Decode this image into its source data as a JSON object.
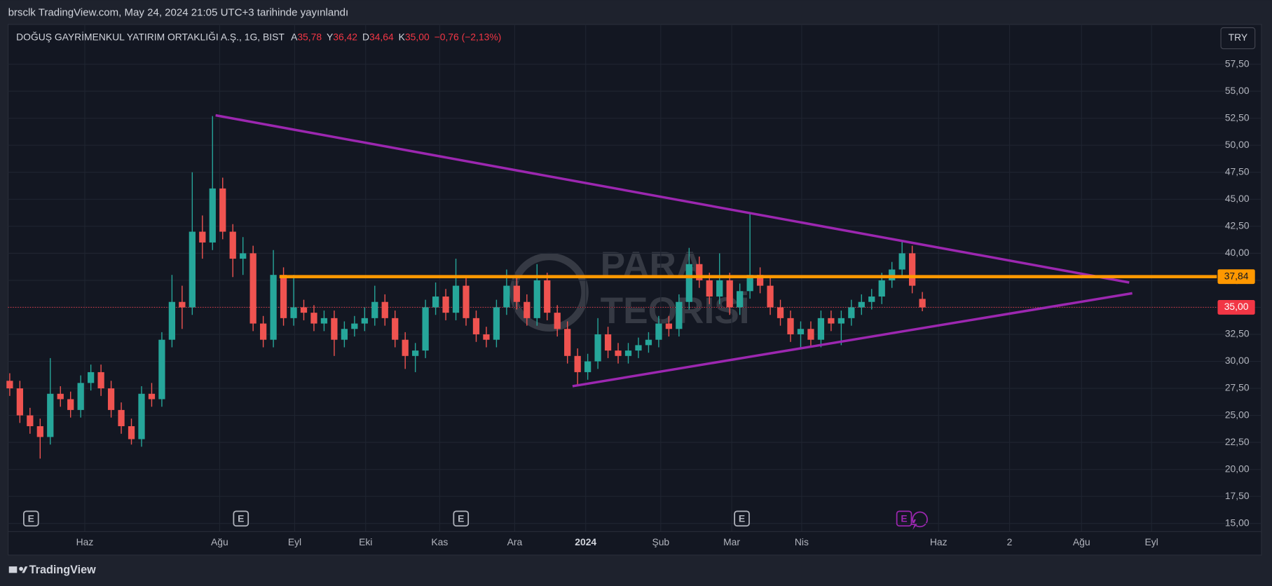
{
  "published": "brsclk TradingView.com, May 24, 2024 21:05 UTC+3 tarihinde yayınlandı",
  "footer": "TradingView",
  "chart_data": {
    "type": "candlestick",
    "title": "DOĞUŞ GAYRİMENKUL YATIRIM ORTAKLIĞI A.Ş., 1G, BIST",
    "ohlc_header": [
      {
        "label": "A",
        "value": "35,78"
      },
      {
        "label": "Y",
        "value": "36,42"
      },
      {
        "label": "D",
        "value": "34,64"
      },
      {
        "label": "K",
        "value": "35,00"
      }
    ],
    "change": "−0,76 (−2,13%)",
    "currency": "TRY",
    "watermark": [
      "PARA",
      "TEORİSİ"
    ],
    "up_color": "#26a69a",
    "down_color": "#ef5350",
    "candles": [
      [
        28.2,
        28.9,
        26.8,
        27.5
      ],
      [
        27.5,
        28.2,
        24.3,
        25
      ],
      [
        25,
        25.7,
        23.3,
        24
      ],
      [
        24,
        24.7,
        21,
        23
      ],
      [
        23,
        30.3,
        22.3,
        27
      ],
      [
        27,
        27.7,
        25.8,
        26.5
      ],
      [
        26.5,
        27.2,
        24.8,
        25.5
      ],
      [
        25.5,
        28.7,
        24.8,
        28
      ],
      [
        28,
        29.7,
        27.3,
        29
      ],
      [
        29,
        29.7,
        26.8,
        27.5
      ],
      [
        27.5,
        28.2,
        24.8,
        25.5
      ],
      [
        25.5,
        26.2,
        23.3,
        24
      ],
      [
        24,
        24.7,
        22.3,
        22.8
      ],
      [
        22.8,
        27.7,
        22.1,
        27
      ],
      [
        27,
        28,
        25.8,
        26.5
      ],
      [
        26.5,
        32.7,
        25.8,
        32
      ],
      [
        32,
        38,
        31.3,
        35.5
      ],
      [
        35.5,
        37,
        33,
        35
      ],
      [
        35,
        47.5,
        34.3,
        42
      ],
      [
        42,
        43.5,
        39.5,
        41
      ],
      [
        41,
        52.7,
        40.3,
        46
      ],
      [
        46,
        47,
        41.3,
        42
      ],
      [
        42,
        42.7,
        37.8,
        39.5
      ],
      [
        39.5,
        41.5,
        38,
        40
      ],
      [
        40,
        40.7,
        32.8,
        33.5
      ],
      [
        33.5,
        34.2,
        31.3,
        32
      ],
      [
        32,
        40.3,
        31.3,
        38
      ],
      [
        38,
        38.7,
        33.3,
        34
      ],
      [
        34,
        38,
        33.3,
        35
      ],
      [
        35,
        35.7,
        33.8,
        34.5
      ],
      [
        34.5,
        35.2,
        32.8,
        33.5
      ],
      [
        33.5,
        34.7,
        32.8,
        34
      ],
      [
        34,
        34.7,
        30.5,
        32
      ],
      [
        32,
        33.7,
        31.3,
        33
      ],
      [
        33,
        34.2,
        32.3,
        33.5
      ],
      [
        33.5,
        35,
        32.8,
        34
      ],
      [
        34,
        37,
        33.3,
        35.5
      ],
      [
        35.5,
        36.2,
        33.3,
        34
      ],
      [
        34,
        34.7,
        31.3,
        32
      ],
      [
        32,
        32.7,
        29.3,
        30.5
      ],
      [
        30.5,
        31.7,
        29,
        31
      ],
      [
        31,
        35.7,
        30.3,
        35
      ],
      [
        35,
        37.3,
        34.3,
        36
      ],
      [
        36,
        36.7,
        33.8,
        34.5
      ],
      [
        34.5,
        39.5,
        33.8,
        37
      ],
      [
        37,
        37.7,
        33.3,
        34
      ],
      [
        34,
        34.7,
        31.8,
        32.5
      ],
      [
        32.5,
        33.2,
        31.3,
        32
      ],
      [
        32,
        35.7,
        31.3,
        35
      ],
      [
        35,
        38.5,
        34.3,
        37
      ],
      [
        37,
        37.7,
        34.8,
        35.5
      ],
      [
        35.5,
        36.2,
        33.3,
        34
      ],
      [
        34,
        39,
        33.3,
        37.5
      ],
      [
        37.5,
        38.2,
        33.8,
        34.5
      ],
      [
        34.5,
        35.2,
        32.3,
        33
      ],
      [
        33,
        33.7,
        29.8,
        30.5
      ],
      [
        30.5,
        31.2,
        27.8,
        29
      ],
      [
        29,
        30.7,
        28.3,
        30
      ],
      [
        30,
        34,
        29.3,
        32.5
      ],
      [
        32.5,
        33.2,
        30.3,
        31
      ],
      [
        31,
        31.7,
        29.8,
        30.5
      ],
      [
        30.5,
        31.7,
        29.8,
        31
      ],
      [
        31,
        32.2,
        30.3,
        31.5
      ],
      [
        31.5,
        32.7,
        30.8,
        32
      ],
      [
        32,
        34.2,
        31.3,
        33.5
      ],
      [
        33.5,
        34.2,
        32.3,
        33
      ],
      [
        33,
        36.2,
        32.3,
        35.5
      ],
      [
        35.5,
        40.5,
        34.8,
        39
      ],
      [
        39,
        39.7,
        36.8,
        37.5
      ],
      [
        37.5,
        38.2,
        35.3,
        36
      ],
      [
        36,
        40,
        35.3,
        37.5
      ],
      [
        37.5,
        38.2,
        34.3,
        35
      ],
      [
        35,
        37.2,
        34.3,
        36.5
      ],
      [
        36.5,
        43.8,
        35.8,
        38
      ],
      [
        38,
        38.7,
        36.3,
        37
      ],
      [
        37,
        37.7,
        34.3,
        35
      ],
      [
        35,
        35.7,
        33.3,
        34
      ],
      [
        34,
        34.7,
        31.8,
        32.5
      ],
      [
        32.5,
        33.7,
        31.3,
        33
      ],
      [
        33,
        33.7,
        31.3,
        32
      ],
      [
        32,
        34.7,
        31.3,
        34
      ],
      [
        34,
        34.7,
        32.8,
        33.5
      ],
      [
        33.5,
        34.7,
        31.5,
        34
      ],
      [
        34,
        35.7,
        33.3,
        35
      ],
      [
        35,
        36.2,
        34.3,
        35.5
      ],
      [
        35.5,
        36.7,
        34.8,
        36
      ],
      [
        36,
        38.2,
        35.3,
        37.5
      ],
      [
        37.5,
        39.2,
        36.8,
        38.5
      ],
      [
        38.5,
        41.2,
        37.8,
        40
      ],
      [
        40,
        40.7,
        36.3,
        37
      ],
      [
        35.78,
        36.42,
        34.64,
        35
      ]
    ],
    "xlim": [
      -0.16,
      119.04
    ],
    "xticks": [
      {
        "value": 7.4,
        "label": "Haz"
      },
      {
        "value": 20.7,
        "label": "Ağu"
      },
      {
        "value": 28.1,
        "label": "Eyl"
      },
      {
        "value": 35.1,
        "label": "Eki"
      },
      {
        "value": 42.4,
        "label": "Kas"
      },
      {
        "value": 49.8,
        "label": "Ara"
      },
      {
        "value": 56.8,
        "label": "2024"
      },
      {
        "value": 64.2,
        "label": "Şub"
      },
      {
        "value": 71.2,
        "label": "Mar"
      },
      {
        "value": 78.1,
        "label": "Nis"
      },
      {
        "value": 91.6,
        "label": "Haz"
      },
      {
        "value": 98.6,
        "label": "2"
      },
      {
        "value": 105.7,
        "label": "Ağu"
      },
      {
        "value": 112.6,
        "label": "Eyl"
      }
    ],
    "ylim": [
      14.25,
      61.18
    ],
    "yticks": [
      {
        "value": 15,
        "label": "15,00"
      },
      {
        "value": 17.5,
        "label": "17,50"
      },
      {
        "value": 20,
        "label": "20,00"
      },
      {
        "value": 22.5,
        "label": "22,50"
      },
      {
        "value": 25,
        "label": "25,00"
      },
      {
        "value": 27.5,
        "label": "27,50"
      },
      {
        "value": 30,
        "label": "30,00"
      },
      {
        "value": 32.5,
        "label": "32,50"
      },
      {
        "value": 35,
        "label": "35,00"
      },
      {
        "value": 37.5,
        "label": "37,50"
      },
      {
        "value": 40,
        "label": "40,00"
      },
      {
        "value": 42.5,
        "label": "42,50"
      },
      {
        "value": 45,
        "label": "45,00"
      },
      {
        "value": 47.5,
        "label": "47,50"
      },
      {
        "value": 50,
        "label": "50,00"
      },
      {
        "value": 52.5,
        "label": "52,50"
      },
      {
        "value": 55,
        "label": "55,00"
      },
      {
        "value": 57.5,
        "label": "57,50"
      }
    ],
    "grid": true,
    "trendlines": [
      {
        "x": [
          20.3,
          110.4
        ],
        "y": [
          52.77,
          37.3
        ],
        "color": "#9c27b0"
      },
      {
        "x": [
          55.5,
          110.7
        ],
        "y": [
          27.7,
          36.3
        ],
        "color": "#9c27b0"
      }
    ],
    "hline": {
      "value": 37.84,
      "label": "37,84",
      "x_start": 26.6,
      "color": "#ff9800"
    },
    "last_price": {
      "value": 35,
      "label": "35,00",
      "color": "#f23645"
    },
    "events": [
      {
        "x": 2.1,
        "label": "E"
      },
      {
        "x": 22.8,
        "label": "E"
      },
      {
        "x": 44.5,
        "label": "E"
      },
      {
        "x": 72.2,
        "label": "E"
      },
      {
        "x": 88.2,
        "label": "E"
      }
    ]
  }
}
